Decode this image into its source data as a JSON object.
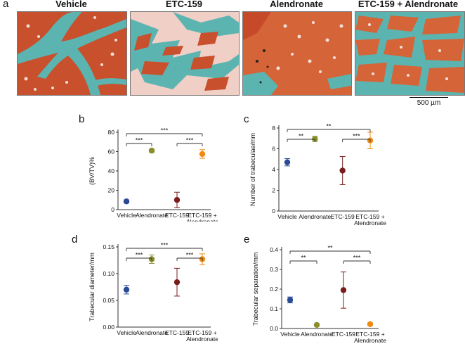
{
  "figure": {
    "panel_a": {
      "letter": "a",
      "image_titles": [
        "Vehicle",
        "ETC-159",
        "Alendronate",
        "ETC-159 + Alendronate"
      ],
      "scale_bar": "500 µm",
      "colors": {
        "tissue": "#c8502d",
        "trabecular": "#5cb4b0",
        "marrow": "#f2dcd5"
      }
    }
  },
  "chart_data": [
    {
      "panel": "b",
      "type": "scatter",
      "categories": [
        "Vehicle",
        "Alendronate",
        "ETC-159",
        "ETC-159 +\nAlendronate"
      ],
      "values": [
        8.5,
        61,
        10,
        57.5
      ],
      "errors": [
        1.5,
        1.5,
        8,
        4.5
      ],
      "ylabel": "(BV/TV)%",
      "ylim": [
        0,
        80
      ],
      "yticks": [
        0,
        20,
        40,
        60,
        80
      ],
      "colors": [
        "#2b4a96",
        "#8a8f2a",
        "#7a1c1c",
        "#f08a12"
      ],
      "brackets": [
        {
          "from": 0,
          "to": 1,
          "label": "***"
        },
        {
          "from": 0,
          "to": 3,
          "label": "***"
        },
        {
          "from": 2,
          "to": 3,
          "label": "***"
        }
      ]
    },
    {
      "panel": "c",
      "type": "scatter",
      "categories": [
        "Vehicle",
        "Alendronate",
        "ETC-159",
        "ETC-159 +\nAlendronate"
      ],
      "values": [
        4.7,
        6.95,
        3.9,
        6.8
      ],
      "errors": [
        0.35,
        0.25,
        1.35,
        0.8
      ],
      "ylabel": "Number of trabeculae/mm",
      "ylim": [
        0,
        8
      ],
      "yticks": [
        0,
        2,
        4,
        6,
        8
      ],
      "colors": [
        "#2b4a96",
        "#8a8f2a",
        "#7a1c1c",
        "#f08a12"
      ],
      "brackets": [
        {
          "from": 0,
          "to": 1,
          "label": "**"
        },
        {
          "from": 0,
          "to": 3,
          "label": "**"
        },
        {
          "from": 2,
          "to": 3,
          "label": "***"
        }
      ]
    },
    {
      "panel": "d",
      "type": "scatter",
      "categories": [
        "Vehicle",
        "Alendronate",
        "ETC-159",
        "ETC-159 +\nAlendronate"
      ],
      "values": [
        0.07,
        0.127,
        0.084,
        0.127
      ],
      "errors": [
        0.008,
        0.008,
        0.026,
        0.01
      ],
      "ylabel": "Trabecular diameter/mm",
      "ylim": [
        0,
        0.15
      ],
      "yticks": [
        0.0,
        0.05,
        0.1,
        0.15
      ],
      "yticklabels": [
        "0.00",
        "0.05",
        "0.10",
        "0.15"
      ],
      "colors": [
        "#2b4a96",
        "#8a8f2a",
        "#7a1c1c",
        "#f08a12"
      ],
      "brackets": [
        {
          "from": 0,
          "to": 1,
          "label": "***"
        },
        {
          "from": 0,
          "to": 3,
          "label": "***"
        },
        {
          "from": 2,
          "to": 3,
          "label": "***"
        }
      ]
    },
    {
      "panel": "e",
      "type": "scatter",
      "categories": [
        "Vehicle",
        "Alendronate",
        "ETC-159",
        "ETC-159 +\nAlendronate"
      ],
      "values": [
        0.145,
        0.018,
        0.195,
        0.022
      ],
      "errors": [
        0.015,
        0.004,
        0.092,
        0.006
      ],
      "ylabel": "Trabecular separation/mm",
      "ylim": [
        0,
        0.4
      ],
      "yticks": [
        0,
        0.1,
        0.2,
        0.3,
        0.4
      ],
      "yticklabels": [
        "0.0",
        "0.1",
        "0.2",
        "0.3",
        "0.4"
      ],
      "colors": [
        "#2b4a96",
        "#8a8f2a",
        "#7a1c1c",
        "#f08a12"
      ],
      "brackets": [
        {
          "from": 0,
          "to": 1,
          "label": "**"
        },
        {
          "from": 0,
          "to": 3,
          "label": "**"
        },
        {
          "from": 2,
          "to": 3,
          "label": "***"
        }
      ]
    }
  ]
}
